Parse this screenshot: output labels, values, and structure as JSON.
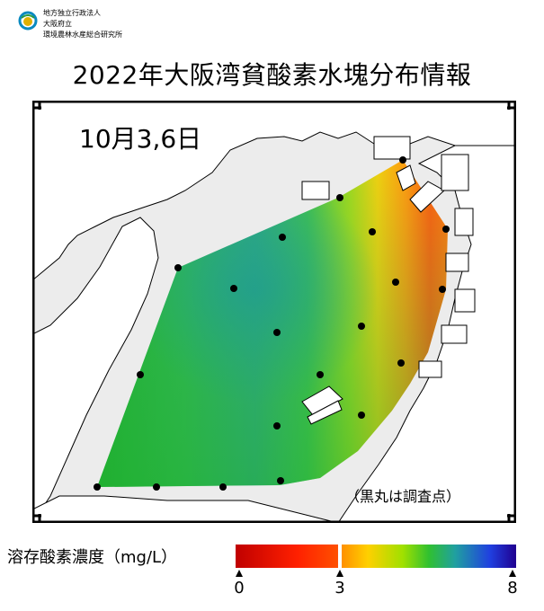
{
  "header": {
    "org_line1": "地方独立行政法人",
    "org_line2": "大阪府立",
    "org_line3": "環境農林水産総合研究所",
    "title": "2022年大阪湾貧酸素水塊分布情報"
  },
  "map": {
    "date_label": "10月3,6日",
    "note": "（黒丸は調査点）",
    "survey_points_count": 22
  },
  "legend": {
    "label": "溶存酸素濃度（mg/L）",
    "min_label": "0",
    "threshold_label": "3",
    "max_label": "8",
    "colors": [
      "#c00000",
      "#ff3000",
      "#ff9000",
      "#ffd000",
      "#a0e000",
      "#30c030",
      "#20a0a0",
      "#2040e0",
      "#200090"
    ]
  }
}
